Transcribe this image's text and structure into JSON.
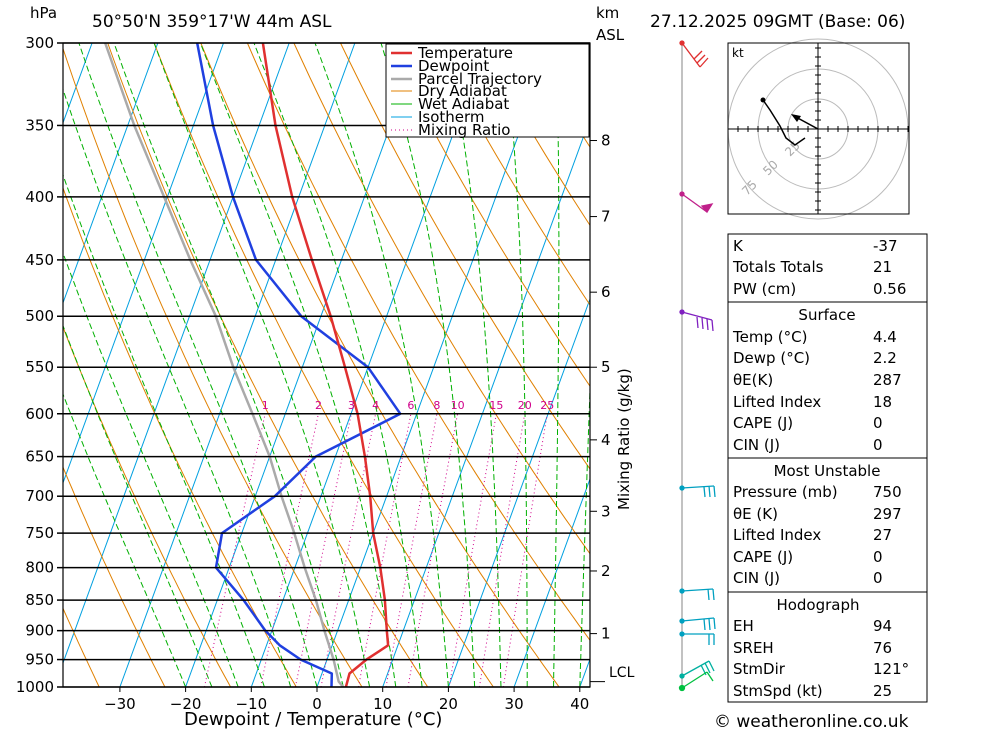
{
  "header": {
    "units_hpa": "hPa",
    "location": "50°50'N  359°17'W  44m  ASL",
    "units_km": "km",
    "units_asl": "ASL",
    "datetime": "27.12.2025  09GMT  (Base: 06)"
  },
  "legend": {
    "temperature": "Temperature",
    "dewpoint": "Dewpoint",
    "parcel": "Parcel Trajectory",
    "dry_adiabat": "Dry Adiabat",
    "wet_adiabat": "Wet Adiabat",
    "isotherm": "Isotherm",
    "mixing_ratio": "Mixing Ratio"
  },
  "colors": {
    "temperature": "#e03030",
    "dewpoint": "#2040e0",
    "parcel": "#aaaaaa",
    "dry_adiabat": "#e08000",
    "wet_adiabat": "#00b000",
    "isotherm": "#00a0e0",
    "mixing_ratio": "#d0008a"
  },
  "chart_data": {
    "type": "line",
    "xlabel": "Dewpoint / Temperature (°C)",
    "ylabel": "hPa",
    "y2label": "Mixing Ratio (g/kg)",
    "x_ticks": [
      -30,
      -20,
      -10,
      0,
      10,
      20,
      30,
      40
    ],
    "pressure_levels": [
      300,
      350,
      400,
      450,
      500,
      550,
      600,
      650,
      700,
      750,
      800,
      850,
      900,
      950,
      1000
    ],
    "km_ticks": [
      {
        "km": "8",
        "p": 360
      },
      {
        "km": "7",
        "p": 415
      },
      {
        "km": "6",
        "p": 478
      },
      {
        "km": "5",
        "p": 550
      },
      {
        "km": "4",
        "p": 630
      },
      {
        "km": "3",
        "p": 720
      },
      {
        "km": "2",
        "p": 805
      },
      {
        "km": "1",
        "p": 905
      }
    ],
    "lcl_label": "LCL",
    "lcl_pressure": 990,
    "mixing_ratio_labels": [
      "1",
      "2",
      "3",
      "4",
      "6",
      "8",
      "10",
      "15",
      "20",
      "25"
    ],
    "series": [
      {
        "name": "Temperature",
        "points": [
          {
            "p": 1000,
            "t": 4.4
          },
          {
            "p": 975,
            "t": 4.2
          },
          {
            "p": 950,
            "t": 6.0
          },
          {
            "p": 925,
            "t": 8.5
          },
          {
            "p": 900,
            "t": 7.5
          },
          {
            "p": 850,
            "t": 5.5
          },
          {
            "p": 800,
            "t": 3.0
          },
          {
            "p": 750,
            "t": 0.0
          },
          {
            "p": 700,
            "t": -2.5
          },
          {
            "p": 650,
            "t": -5.5
          },
          {
            "p": 600,
            "t": -9.0
          },
          {
            "p": 550,
            "t": -13.5
          },
          {
            "p": 500,
            "t": -18.5
          },
          {
            "p": 450,
            "t": -24.5
          },
          {
            "p": 400,
            "t": -31.0
          },
          {
            "p": 350,
            "t": -37.5
          },
          {
            "p": 300,
            "t": -44.0
          }
        ]
      },
      {
        "name": "Dewpoint",
        "points": [
          {
            "p": 1000,
            "t": 2.2
          },
          {
            "p": 975,
            "t": 1.5
          },
          {
            "p": 950,
            "t": -4.0
          },
          {
            "p": 925,
            "t": -8.0
          },
          {
            "p": 900,
            "t": -11.0
          },
          {
            "p": 850,
            "t": -16.0
          },
          {
            "p": 800,
            "t": -22.0
          },
          {
            "p": 750,
            "t": -23.0
          },
          {
            "p": 700,
            "t": -17.0
          },
          {
            "p": 650,
            "t": -13.0
          },
          {
            "p": 600,
            "t": -2.5
          },
          {
            "p": 550,
            "t": -10.0
          },
          {
            "p": 500,
            "t": -23.0
          },
          {
            "p": 450,
            "t": -33.0
          },
          {
            "p": 400,
            "t": -40.0
          },
          {
            "p": 350,
            "t": -47.0
          },
          {
            "p": 300,
            "t": -54.0
          }
        ]
      },
      {
        "name": "Parcel Trajectory",
        "points": [
          {
            "p": 1000,
            "t": 4.0
          },
          {
            "p": 990,
            "t": 3.0
          },
          {
            "p": 950,
            "t": 1.0
          },
          {
            "p": 900,
            "t": -2.0
          },
          {
            "p": 850,
            "t": -5.0
          },
          {
            "p": 800,
            "t": -8.5
          },
          {
            "p": 750,
            "t": -12.0
          },
          {
            "p": 700,
            "t": -16.0
          },
          {
            "p": 650,
            "t": -20.0
          },
          {
            "p": 600,
            "t": -25.0
          },
          {
            "p": 550,
            "t": -30.5
          },
          {
            "p": 500,
            "t": -36.0
          },
          {
            "p": 450,
            "t": -43.0
          },
          {
            "p": 400,
            "t": -50.5
          },
          {
            "p": 350,
            "t": -59.0
          },
          {
            "p": 300,
            "t": -68.0
          }
        ]
      }
    ]
  },
  "hodograph": {
    "unit": "kt",
    "ring_labels": [
      "25",
      "50",
      "75"
    ]
  },
  "indices": {
    "k_label": "K",
    "k_value": "-37",
    "tt_label": "Totals Totals",
    "tt_value": "21",
    "pw_label": "PW (cm)",
    "pw_value": "0.56"
  },
  "surface": {
    "title": "Surface",
    "temp_label": "Temp (°C)",
    "temp_value": "4.4",
    "dewp_label": "Dewp (°C)",
    "dewp_value": "2.2",
    "theta_label": "θE(K)",
    "theta_value": "287",
    "li_label": "Lifted Index",
    "li_value": "18",
    "cape_label": "CAPE (J)",
    "cape_value": "0",
    "cin_label": "CIN (J)",
    "cin_value": "0"
  },
  "most_unstable": {
    "title": "Most Unstable",
    "pressure_label": "Pressure (mb)",
    "pressure_value": "750",
    "theta_label": "θE (K)",
    "theta_value": "297",
    "li_label": "Lifted Index",
    "li_value": "27",
    "cape_label": "CAPE (J)",
    "cape_value": "0",
    "cin_label": "CIN (J)",
    "cin_value": "0"
  },
  "hodograph_params": {
    "title": "Hodograph",
    "eh_label": "EH",
    "eh_value": "94",
    "sreh_label": "SREH",
    "sreh_value": "76",
    "stmdir_label": "StmDir",
    "stmdir_value": "121°",
    "stmspd_label": "StmSpd (kt)",
    "stmspd_value": "25"
  },
  "footer": {
    "copyright": "© weatheronline.co.uk"
  }
}
